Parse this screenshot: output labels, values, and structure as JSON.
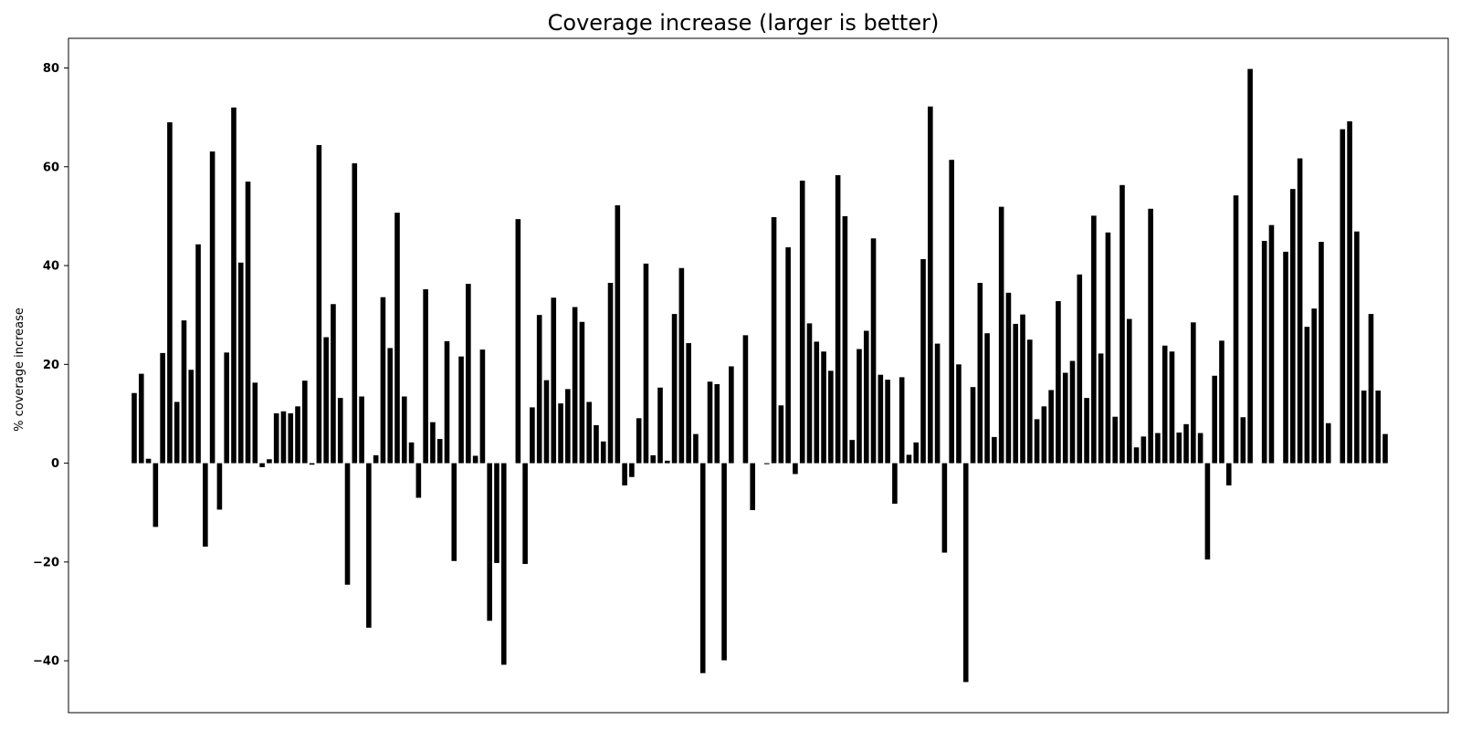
{
  "chart_data": {
    "type": "bar",
    "title": "Coverage increase (larger is better)",
    "xlabel": "",
    "ylabel": "% coverage increase",
    "ylim": [
      -50.5,
      86
    ],
    "yticks": [
      -40,
      -20,
      0,
      20,
      40,
      60,
      80
    ],
    "ytick_labels": [
      "−40",
      "−20",
      "0",
      "20",
      "40",
      "60",
      "80"
    ],
    "grid": false,
    "bar_color": "#000000",
    "values": [
      14.2,
      18.1,
      0.9,
      -12.9,
      22.3,
      69.0,
      12.4,
      28.9,
      18.9,
      44.3,
      -16.9,
      63.1,
      -9.4,
      22.4,
      72.0,
      40.6,
      57.0,
      16.3,
      -0.8,
      0.8,
      10.1,
      10.5,
      10.1,
      11.5,
      16.7,
      -0.3,
      64.4,
      25.5,
      32.2,
      13.2,
      -24.6,
      60.7,
      13.5,
      -33.3,
      1.6,
      33.6,
      23.3,
      50.7,
      13.5,
      4.2,
      -7.0,
      35.2,
      8.3,
      4.9,
      24.7,
      -19.8,
      21.6,
      36.3,
      1.5,
      23.0,
      -31.9,
      -20.2,
      -40.8,
      0,
      49.4,
      -20.4,
      11.3,
      30.0,
      16.8,
      33.5,
      12.1,
      15.0,
      31.6,
      28.6,
      12.4,
      7.7,
      4.4,
      36.5,
      52.2,
      -4.5,
      -2.8,
      9.1,
      40.4,
      1.6,
      15.3,
      0.5,
      30.2,
      39.5,
      24.3,
      5.9,
      -42.5,
      16.5,
      16.0,
      -39.9,
      19.6,
      0,
      25.9,
      -9.5,
      0,
      -0.2,
      49.8,
      11.7,
      43.7,
      -2.2,
      57.2,
      28.3,
      24.6,
      22.6,
      18.7,
      58.3,
      50.0,
      4.7,
      23.1,
      26.8,
      45.5,
      17.9,
      16.9,
      -8.2,
      17.4,
      1.7,
      4.2,
      41.3,
      72.2,
      24.2,
      -18.1,
      61.4,
      20.0,
      -44.3,
      15.4,
      36.5,
      26.3,
      5.3,
      51.9,
      34.5,
      28.2,
      30.1,
      25.0,
      8.9,
      11.5,
      14.8,
      32.8,
      18.3,
      20.7,
      38.2,
      13.2,
      50.1,
      22.2,
      46.7,
      9.4,
      56.3,
      29.2,
      3.2,
      5.4,
      51.5,
      6.1,
      23.8,
      22.6,
      6.2,
      7.9,
      28.5,
      6.1,
      -19.5,
      17.7,
      24.8,
      -4.5,
      54.2,
      9.3,
      79.8,
      0,
      45.0,
      48.2,
      0,
      42.8,
      55.5,
      61.7,
      27.6,
      31.3,
      44.8,
      8.1,
      0,
      67.6,
      69.2,
      46.9,
      14.7,
      30.2,
      14.7,
      5.9
    ]
  }
}
